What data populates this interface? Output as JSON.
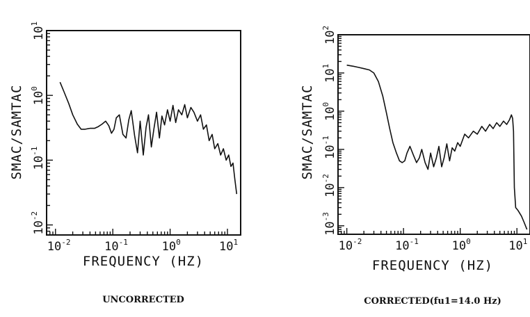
{
  "chart_data": [
    {
      "type": "line",
      "caption": "UNCORRECTED",
      "xlabel": "FREQUENCY (HZ)",
      "ylabel": "SMAC/SAMTAC",
      "xscale": "log",
      "yscale": "log",
      "xlim": [
        0.007,
        17
      ],
      "ylim": [
        0.007,
        10
      ],
      "x_tick_labels": [
        {
          "base": "10",
          "exp": "-2"
        },
        {
          "base": "10",
          "exp": "-1"
        },
        {
          "base": "10",
          "exp": "0"
        },
        {
          "base": "10",
          "exp": "1"
        }
      ],
      "y_tick_labels": [
        {
          "base": "10",
          "exp": "-2"
        },
        {
          "base": "10",
          "exp": "-1"
        },
        {
          "base": "10",
          "exp": "0"
        },
        {
          "base": "10",
          "exp": "1"
        }
      ],
      "series": [
        {
          "x": [
            0.012,
            0.014,
            0.017,
            0.02,
            0.024,
            0.028,
            0.033,
            0.04,
            0.048,
            0.056,
            0.065,
            0.075,
            0.085,
            0.095,
            0.105,
            0.115,
            0.13,
            0.15,
            0.17,
            0.19,
            0.21,
            0.24,
            0.27,
            0.3,
            0.34,
            0.38,
            0.42,
            0.47,
            0.52,
            0.58,
            0.65,
            0.72,
            0.8,
            0.9,
            1.0,
            1.12,
            1.25,
            1.4,
            1.6,
            1.8,
            2.0,
            2.3,
            2.6,
            3.0,
            3.4,
            3.8,
            4.3,
            4.8,
            5.4,
            6.0,
            6.8,
            7.6,
            8.5,
            9.5,
            10.5,
            11.5,
            12.5,
            13.5,
            14.5
          ],
          "y": [
            1.6,
            1.15,
            0.75,
            0.5,
            0.36,
            0.3,
            0.3,
            0.31,
            0.31,
            0.33,
            0.36,
            0.4,
            0.34,
            0.26,
            0.3,
            0.45,
            0.5,
            0.25,
            0.22,
            0.42,
            0.58,
            0.24,
            0.13,
            0.4,
            0.12,
            0.32,
            0.5,
            0.16,
            0.3,
            0.55,
            0.22,
            0.48,
            0.35,
            0.6,
            0.4,
            0.7,
            0.38,
            0.6,
            0.5,
            0.72,
            0.45,
            0.65,
            0.55,
            0.4,
            0.5,
            0.3,
            0.35,
            0.2,
            0.25,
            0.15,
            0.18,
            0.12,
            0.15,
            0.1,
            0.12,
            0.08,
            0.09,
            0.05,
            0.03
          ]
        }
      ]
    },
    {
      "type": "line",
      "caption": "CORRECTED(fu1=14.0 Hz)",
      "xlabel": "FREQUENCY (HZ)",
      "ylabel": "SMAC/SAMTAC",
      "xscale": "log",
      "yscale": "log",
      "xlim": [
        0.007,
        17
      ],
      "ylim": [
        0.0006,
        100
      ],
      "x_tick_labels": [
        {
          "base": "10",
          "exp": "-2"
        },
        {
          "base": "10",
          "exp": "-1"
        },
        {
          "base": "10",
          "exp": "0"
        },
        {
          "base": "10",
          "exp": "1"
        }
      ],
      "y_tick_labels": [
        {
          "base": "10",
          "exp": "-3"
        },
        {
          "base": "10",
          "exp": "-2"
        },
        {
          "base": "10",
          "exp": "-1"
        },
        {
          "base": "10",
          "exp": "0"
        },
        {
          "base": "10",
          "exp": "1"
        },
        {
          "base": "10",
          "exp": "2"
        }
      ],
      "series": [
        {
          "x": [
            0.01,
            0.013,
            0.016,
            0.02,
            0.025,
            0.03,
            0.036,
            0.043,
            0.05,
            0.057,
            0.065,
            0.075,
            0.085,
            0.095,
            0.105,
            0.115,
            0.13,
            0.15,
            0.17,
            0.19,
            0.21,
            0.24,
            0.27,
            0.3,
            0.34,
            0.38,
            0.42,
            0.47,
            0.52,
            0.58,
            0.65,
            0.72,
            0.8,
            0.9,
            1.0,
            1.2,
            1.4,
            1.7,
            2.0,
            2.4,
            2.8,
            3.3,
            3.8,
            4.4,
            5.0,
            5.8,
            6.6,
            7.4,
            8.0,
            8.4,
            8.7,
            9.0,
            9.5,
            10.5,
            12.0,
            13.5,
            15.0
          ],
          "y": [
            16,
            15,
            14,
            13,
            12,
            10,
            6,
            2.5,
            0.9,
            0.35,
            0.15,
            0.08,
            0.05,
            0.045,
            0.05,
            0.08,
            0.12,
            0.07,
            0.045,
            0.06,
            0.1,
            0.045,
            0.03,
            0.08,
            0.035,
            0.06,
            0.12,
            0.035,
            0.06,
            0.14,
            0.05,
            0.11,
            0.09,
            0.15,
            0.12,
            0.25,
            0.2,
            0.3,
            0.25,
            0.4,
            0.3,
            0.45,
            0.35,
            0.5,
            0.4,
            0.55,
            0.45,
            0.6,
            0.8,
            0.65,
            0.3,
            0.01,
            0.003,
            0.0025,
            0.0018,
            0.0012,
            0.0008
          ]
        }
      ]
    }
  ]
}
